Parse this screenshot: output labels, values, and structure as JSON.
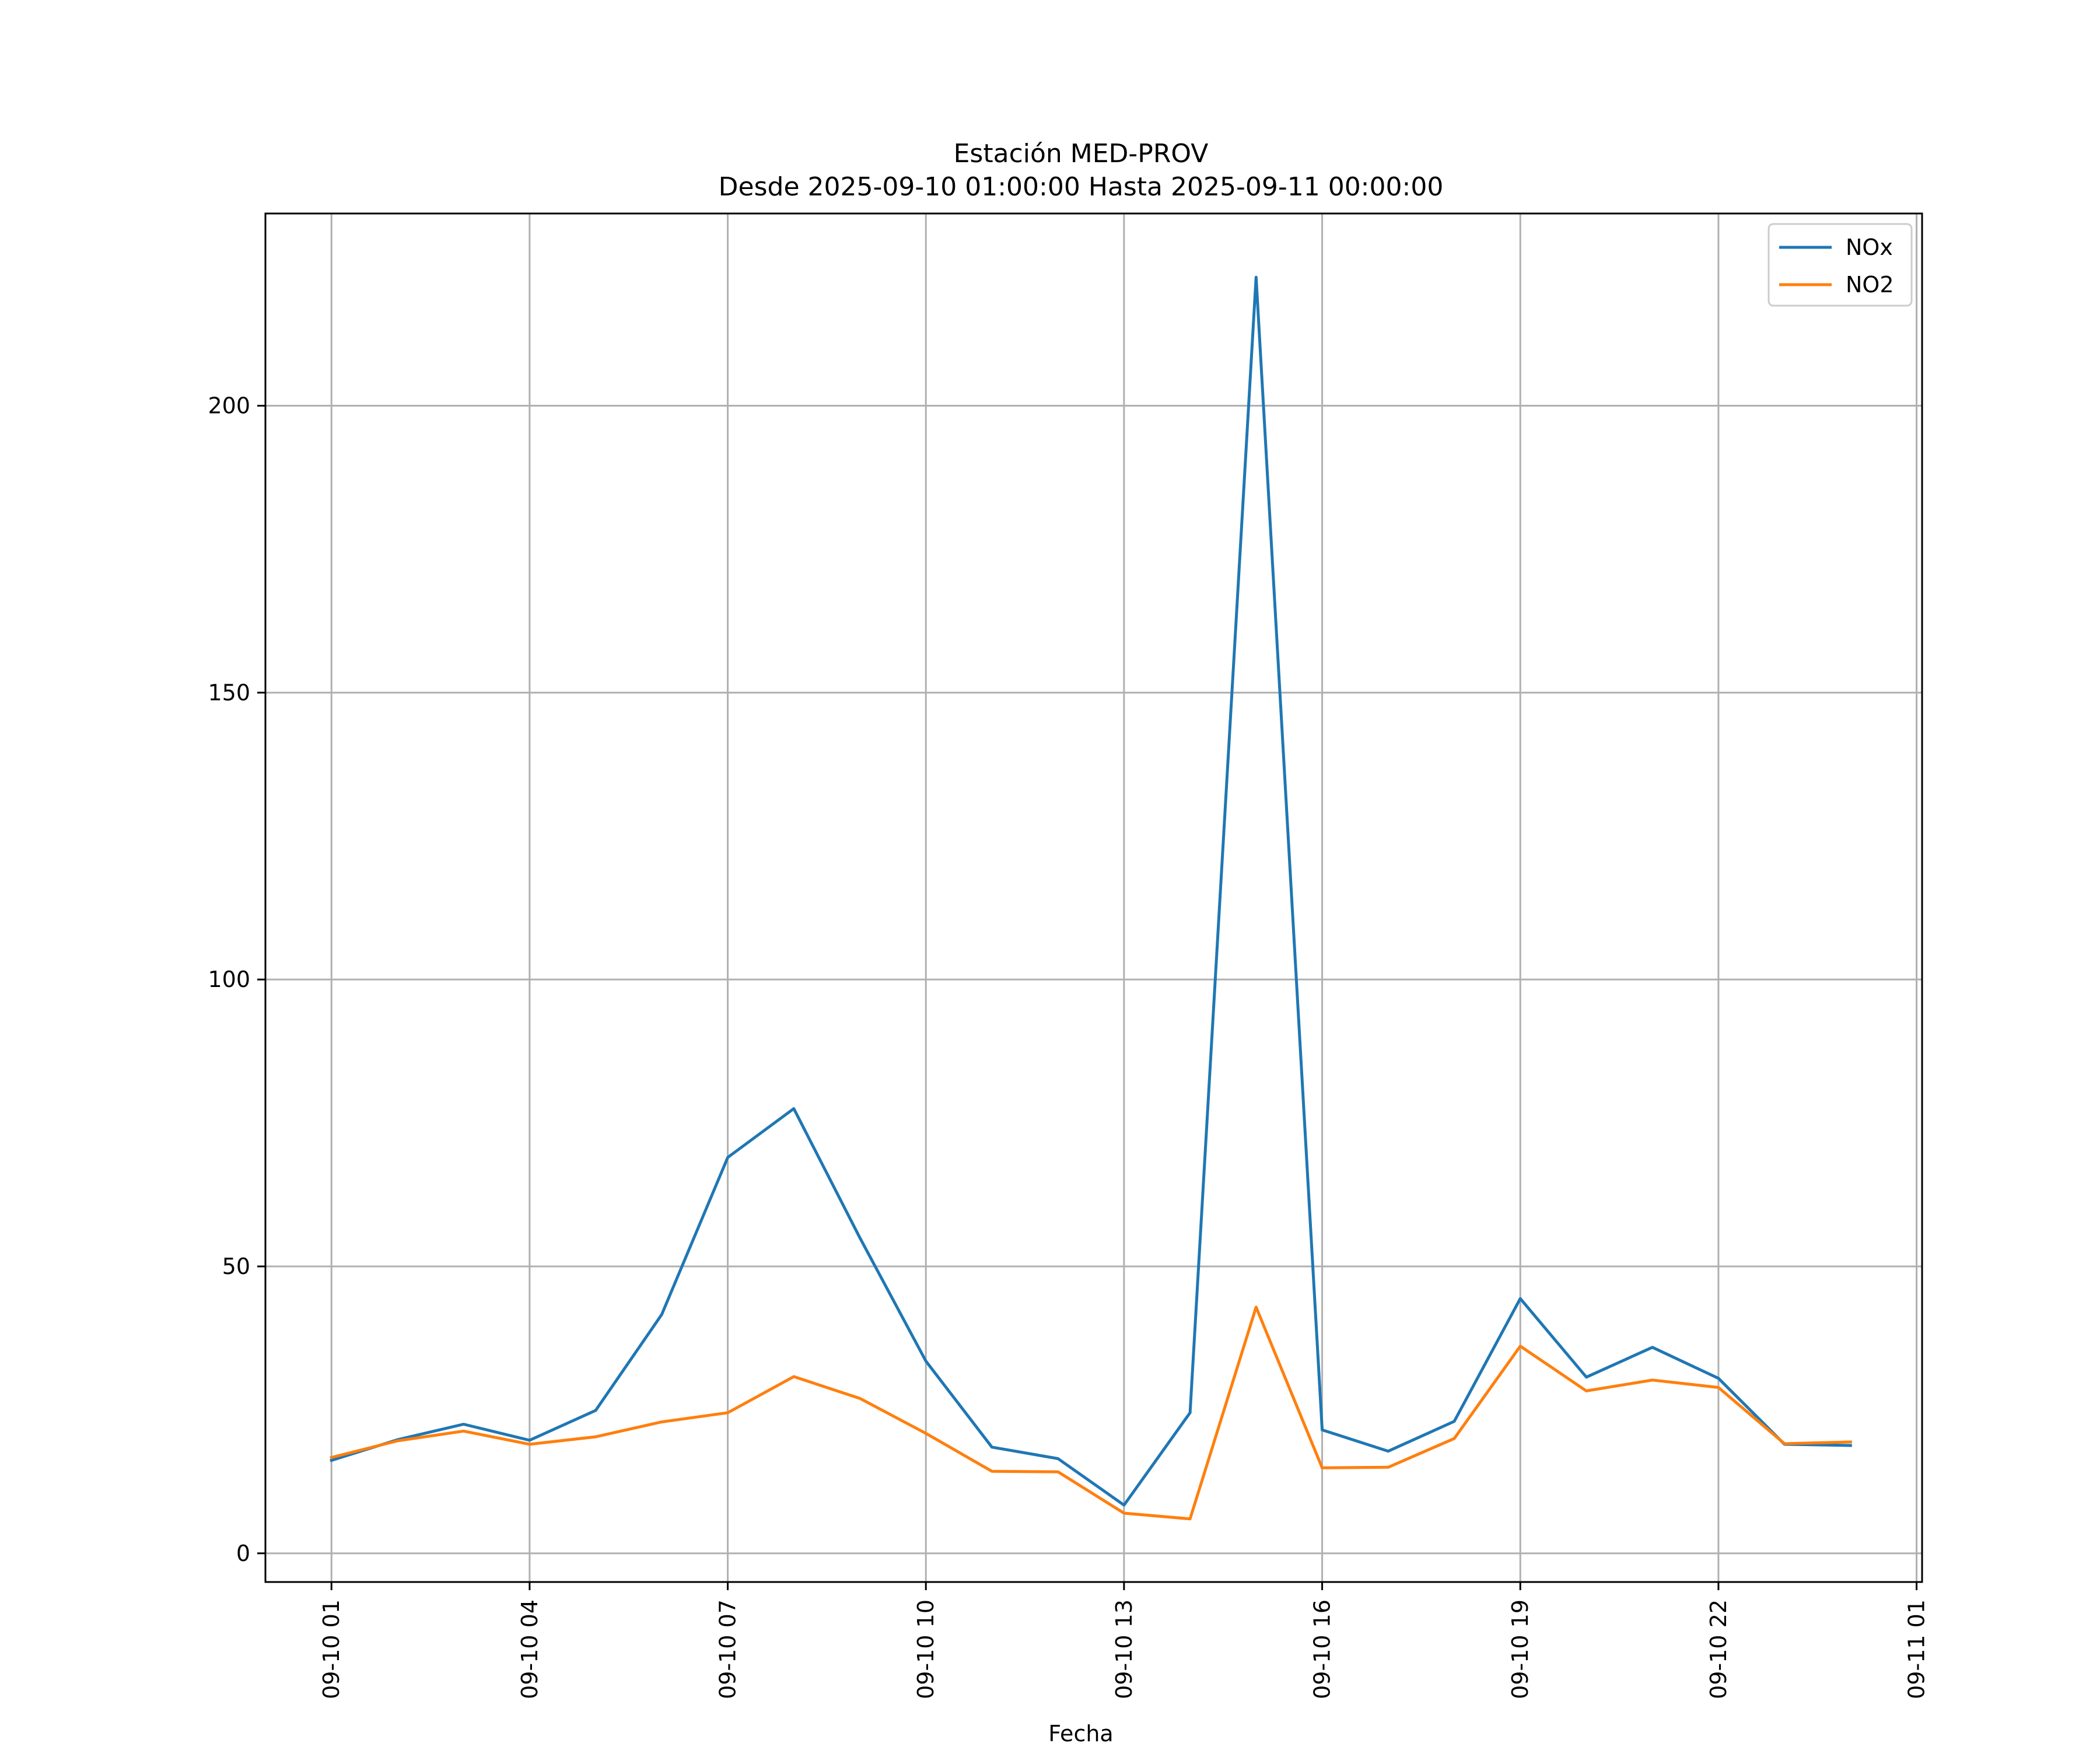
{
  "chart_data": {
    "type": "line",
    "title": "Estación MED-PROV",
    "subtitle": "Desde 2025-09-10 01:00:00 Hasta 2025-09-11 00:00:00",
    "xlabel": "Fecha",
    "ylabel": "",
    "x": [
      "2025-09-10 01:00",
      "2025-09-10 02:00",
      "2025-09-10 03:00",
      "2025-09-10 04:00",
      "2025-09-10 05:00",
      "2025-09-10 06:00",
      "2025-09-10 07:00",
      "2025-09-10 08:00",
      "2025-09-10 09:00",
      "2025-09-10 10:00",
      "2025-09-10 11:00",
      "2025-09-10 12:00",
      "2025-09-10 13:00",
      "2025-09-10 14:00",
      "2025-09-10 15:00",
      "2025-09-10 16:00",
      "2025-09-10 17:00",
      "2025-09-10 18:00",
      "2025-09-10 19:00",
      "2025-09-10 20:00",
      "2025-09-10 21:00",
      "2025-09-10 22:00",
      "2025-09-10 23:00",
      "2025-09-11 00:00"
    ],
    "xlim": [
      "2025-09-10 00:00",
      "2025-09-11 01:05"
    ],
    "xticks": [
      {
        "value": "2025-09-10 01:00",
        "label": "09-10 01"
      },
      {
        "value": "2025-09-10 04:00",
        "label": "09-10 04"
      },
      {
        "value": "2025-09-10 07:00",
        "label": "09-10 07"
      },
      {
        "value": "2025-09-10 10:00",
        "label": "09-10 10"
      },
      {
        "value": "2025-09-10 13:00",
        "label": "09-10 13"
      },
      {
        "value": "2025-09-10 16:00",
        "label": "09-10 16"
      },
      {
        "value": "2025-09-10 19:00",
        "label": "09-10 19"
      },
      {
        "value": "2025-09-10 22:00",
        "label": "09-10 22"
      },
      {
        "value": "2025-09-11 01:00",
        "label": "09-11 01"
      }
    ],
    "ylim": [
      -5,
      233.5
    ],
    "yticks": [
      0,
      50,
      100,
      150,
      200
    ],
    "grid": true,
    "legend_position": "top-right",
    "series": [
      {
        "name": "NOx",
        "color": "#1f77b4",
        "values": [
          16.2,
          19.8,
          22.5,
          19.7,
          24.9,
          41.6,
          69.0,
          77.5,
          55.0,
          33.5,
          18.5,
          16.5,
          8.4,
          24.5,
          222.4,
          21.5,
          17.8,
          23.0,
          44.4,
          30.7,
          35.9,
          30.5,
          19.0,
          18.8
        ]
      },
      {
        "name": "NO2",
        "color": "#ff7f0e",
        "values": [
          16.7,
          19.6,
          21.3,
          19.0,
          20.3,
          22.9,
          24.5,
          30.8,
          27.0,
          20.9,
          14.3,
          14.2,
          7.0,
          6.0,
          42.9,
          14.9,
          15.0,
          20.0,
          36.1,
          28.3,
          30.2,
          28.9,
          19.1,
          19.4
        ]
      }
    ]
  }
}
